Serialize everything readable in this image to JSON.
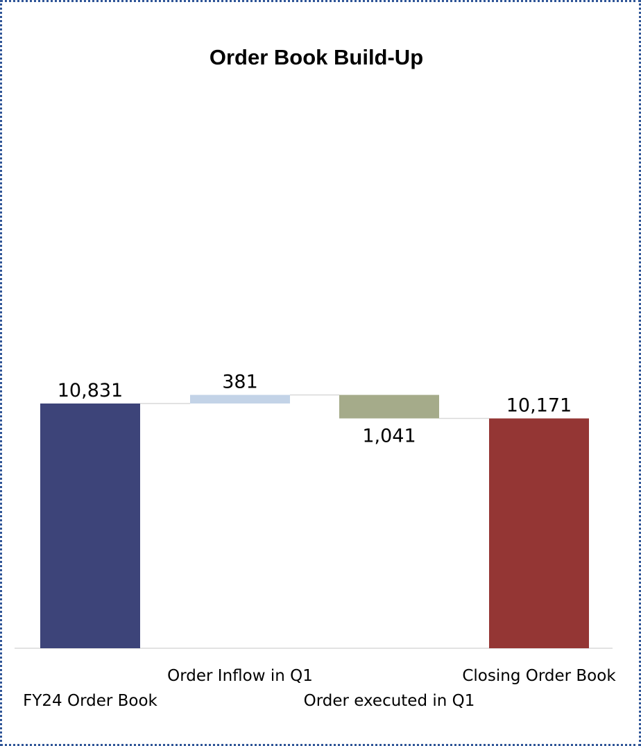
{
  "chart_data": {
    "type": "bar",
    "subtype": "waterfall",
    "title": "Order Book Build-Up",
    "xlabel": "",
    "ylabel": "",
    "gridlines": false,
    "legend": "none",
    "categories": [
      "FY24 Order Book",
      "Order Inflow in Q1",
      "Order executed in Q1",
      "Closing Order Book"
    ],
    "values": [
      10831,
      381,
      -1041,
      10171
    ],
    "labels": [
      "10,831",
      "381",
      "1,041",
      "10,171"
    ],
    "measures": [
      "total",
      "relative",
      "relative",
      "total"
    ],
    "colors": [
      "#3d4479",
      "#c3d3e7",
      "#a5ab8a",
      "#943634"
    ]
  }
}
